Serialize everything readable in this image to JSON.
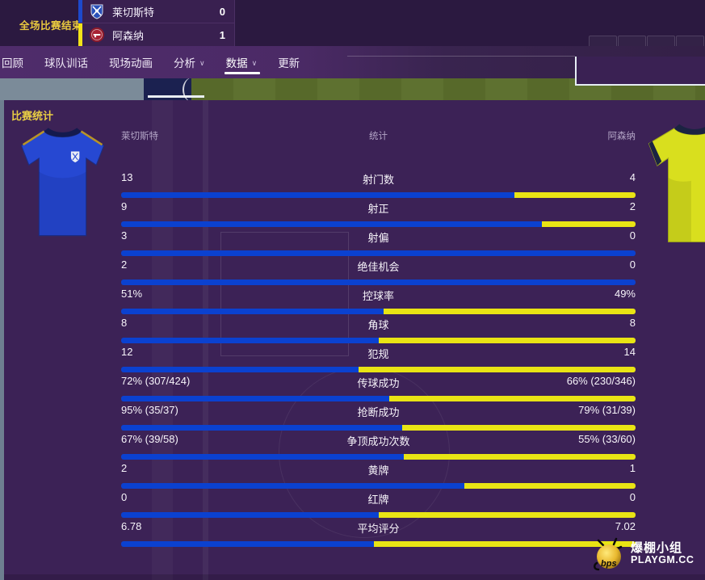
{
  "header": {
    "status_label": "全场比赛结束",
    "home": {
      "name": "莱切斯特",
      "score": "0"
    },
    "away": {
      "name": "阿森纳",
      "score": "1"
    }
  },
  "nav": {
    "items": [
      {
        "label": "回顾",
        "dropdown": false,
        "active": false
      },
      {
        "label": "球队训话",
        "dropdown": false,
        "active": false
      },
      {
        "label": "现场动画",
        "dropdown": false,
        "active": false
      },
      {
        "label": "分析",
        "dropdown": true,
        "active": false
      },
      {
        "label": "数据",
        "dropdown": true,
        "active": true
      },
      {
        "label": "更新",
        "dropdown": false,
        "active": false
      }
    ]
  },
  "panel": {
    "title": "比赛统计",
    "columns": {
      "home": "莱切斯特",
      "center": "统计",
      "away": "阿森纳"
    },
    "colors": {
      "home_bar": "#0b41d0",
      "away_bar": "#e9e414",
      "home_indicator": "#1d49cc",
      "away_indicator": "#f2e319"
    },
    "rows": [
      {
        "label": "射门数",
        "home": "13",
        "away": "4",
        "home_value": 13,
        "away_value": 4
      },
      {
        "label": "射正",
        "home": "9",
        "away": "2",
        "home_value": 9,
        "away_value": 2
      },
      {
        "label": "射偏",
        "home": "3",
        "away": "0",
        "home_value": 3,
        "away_value": 0
      },
      {
        "label": "绝佳机会",
        "home": "2",
        "away": "0",
        "home_value": 2,
        "away_value": 0
      },
      {
        "label": "控球率",
        "home": "51%",
        "away": "49%",
        "home_value": 51,
        "away_value": 49
      },
      {
        "label": "角球",
        "home": "8",
        "away": "8",
        "home_value": 8,
        "away_value": 8
      },
      {
        "label": "犯规",
        "home": "12",
        "away": "14",
        "home_value": 12,
        "away_value": 14
      },
      {
        "label": "传球成功",
        "home": "72% (307/424)",
        "away": "66% (230/346)",
        "home_value": 72,
        "away_value": 66
      },
      {
        "label": "抢断成功",
        "home": "95% (35/37)",
        "away": "79% (31/39)",
        "home_value": 95,
        "away_value": 79
      },
      {
        "label": "争顶成功次数",
        "home": "67% (39/58)",
        "away": "55% (33/60)",
        "home_value": 67,
        "away_value": 55
      },
      {
        "label": "黄牌",
        "home": "2",
        "away": "1",
        "home_value": 2,
        "away_value": 1
      },
      {
        "label": "红牌",
        "home": "0",
        "away": "0",
        "home_value": 0,
        "away_value": 0
      },
      {
        "label": "平均评分",
        "home": "6.78",
        "away": "7.02",
        "home_value": 6.78,
        "away_value": 7.02
      }
    ]
  },
  "watermark": {
    "ball_text": "bps",
    "line1": "爆棚小组",
    "line2": "PLAYGM.CC"
  }
}
